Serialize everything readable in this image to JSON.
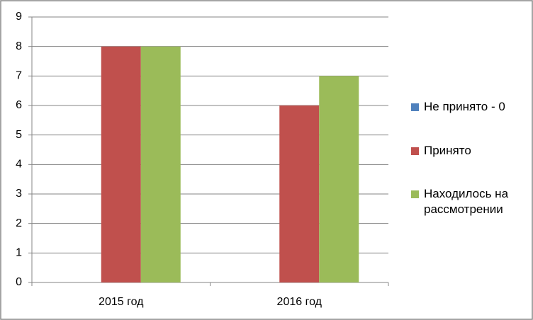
{
  "chart_data": {
    "type": "bar",
    "categories": [
      "2015 год",
      "2016 год"
    ],
    "series": [
      {
        "name": "Не принято - 0",
        "color": "#4f81bd",
        "values": [
          0,
          0
        ]
      },
      {
        "name": "Принято",
        "color": "#c0504d",
        "values": [
          8,
          6
        ]
      },
      {
        "name": "Находилось на рассмотрении",
        "color": "#9bbb59",
        "values": [
          8,
          7
        ]
      }
    ],
    "ylim": [
      0,
      9
    ],
    "yticks": [
      0,
      1,
      2,
      3,
      4,
      5,
      6,
      7,
      8,
      9
    ],
    "grid": true,
    "legend": "right"
  }
}
